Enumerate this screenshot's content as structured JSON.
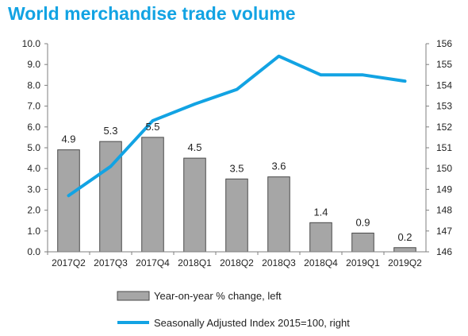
{
  "title": "World merchandise trade volume",
  "chart_data": {
    "type": "bar",
    "categories": [
      "2017Q2",
      "2017Q3",
      "2017Q4",
      "2018Q1",
      "2018Q2",
      "2018Q3",
      "2018Q4",
      "2019Q1",
      "2019Q2"
    ],
    "series": [
      {
        "name": "Year-on-year % change, left",
        "type": "bar",
        "axis": "left",
        "values": [
          4.9,
          5.3,
          5.5,
          4.5,
          3.5,
          3.6,
          1.4,
          0.9,
          0.2
        ],
        "data_labels": [
          "4.9",
          "5.3",
          "5.5",
          "4.5",
          "3.5",
          "3.6",
          "1.4",
          "0.9",
          "0.2"
        ],
        "color": "#a6a6a6"
      },
      {
        "name": "Seasonally Adjusted Index 2015=100, right",
        "type": "line",
        "axis": "right",
        "values": [
          148.7,
          150.1,
          152.3,
          153.1,
          153.8,
          155.4,
          154.5,
          154.5,
          154.2
        ],
        "color": "#12a3e3"
      }
    ],
    "ylim_left": [
      0,
      10
    ],
    "yticks_left": [
      "0.0",
      "1.0",
      "2.0",
      "3.0",
      "4.0",
      "5.0",
      "6.0",
      "7.0",
      "8.0",
      "9.0",
      "10.0"
    ],
    "ylim_right": [
      146,
      156
    ],
    "yticks_right": [
      "146",
      "147",
      "148",
      "149",
      "150",
      "151",
      "152",
      "153",
      "154",
      "155",
      "156"
    ],
    "grid": false,
    "legend": "bottom"
  }
}
